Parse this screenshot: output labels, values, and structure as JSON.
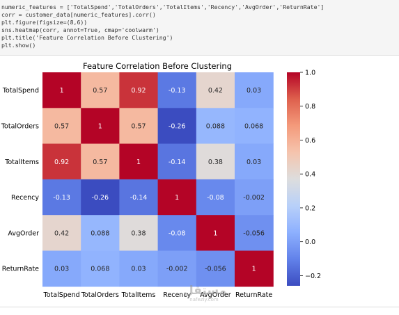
{
  "code_cell": {
    "lines": [
      "numeric_features = ['TotalSpend','TotalOrders','TotalItems','Recency','AvgOrder','ReturnRate']",
      "corr = customer_data[numeric_features].corr()",
      "plt.figure(figsize=(8,6))",
      "sns.heatmap(corr, annot=True, cmap='coolwarm')",
      "plt.title('Feature Correlation Before Clustering')",
      "plt.show()"
    ]
  },
  "chart_data": {
    "type": "heatmap",
    "title": "Feature Correlation Before Clustering",
    "rows": [
      "TotalSpend",
      "TotalOrders",
      "TotalItems",
      "Recency",
      "AvgOrder",
      "ReturnRate"
    ],
    "columns": [
      "TotalSpend",
      "TotalOrders",
      "TotalItems",
      "Recency",
      "AvgOrder",
      "ReturnRate"
    ],
    "values": [
      [
        1,
        0.57,
        0.92,
        -0.13,
        0.42,
        0.03
      ],
      [
        0.57,
        1,
        0.57,
        -0.26,
        0.088,
        0.068
      ],
      [
        0.92,
        0.57,
        1,
        -0.14,
        0.38,
        0.03
      ],
      [
        -0.13,
        -0.26,
        -0.14,
        1,
        -0.08,
        -0.002
      ],
      [
        0.42,
        0.088,
        0.38,
        -0.08,
        1,
        -0.056
      ],
      [
        0.03,
        0.068,
        0.03,
        -0.002,
        -0.056,
        1
      ]
    ],
    "annotations": [
      [
        "1",
        "0.57",
        "0.92",
        "-0.13",
        "0.42",
        "0.03"
      ],
      [
        "0.57",
        "1",
        "0.57",
        "-0.26",
        "0.088",
        "0.068"
      ],
      [
        "0.92",
        "0.57",
        "1",
        "-0.14",
        "0.38",
        "0.03"
      ],
      [
        "-0.13",
        "-0.26",
        "-0.14",
        "1",
        "-0.08",
        "-0.002"
      ],
      [
        "0.42",
        "0.088",
        "0.38",
        "-0.08",
        "1",
        "-0.056"
      ],
      [
        "0.03",
        "0.068",
        "0.03",
        "-0.002",
        "-0.056",
        "1"
      ]
    ],
    "colormap": "coolwarm",
    "vmin": -0.26,
    "vmax": 1.0,
    "colorbar_ticks": [
      1.0,
      0.8,
      0.6,
      0.4,
      0.2,
      0.0,
      -0.2
    ],
    "colorbar_tick_labels": [
      "1.0",
      "0.8",
      "0.6",
      "0.4",
      "0.2",
      "0.0",
      "−0.2"
    ],
    "colorbar_position": "right"
  },
  "watermark": {
    "logo": "مستقل",
    "url": "nafezly.com"
  }
}
